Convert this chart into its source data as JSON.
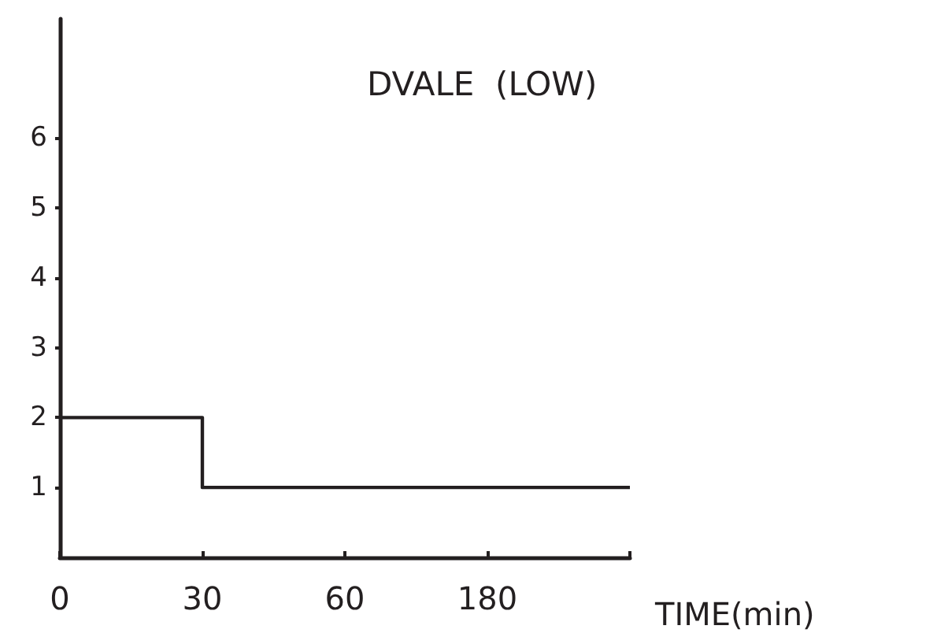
{
  "chart_data": {
    "type": "step",
    "title": "DVALE  (LOW)",
    "xlabel": "TIME(min)",
    "categories": [
      "0",
      "30",
      "60",
      "180",
      null
    ],
    "series": [
      {
        "color": "#231f20",
        "values": [
          2,
          1,
          1,
          1,
          1
        ]
      }
    ],
    "ylim": [
      0,
      7.7
    ],
    "yticks": [
      1,
      2,
      3,
      4,
      5,
      6
    ],
    "grid": false,
    "marker": "none",
    "line_style": "solid"
  }
}
